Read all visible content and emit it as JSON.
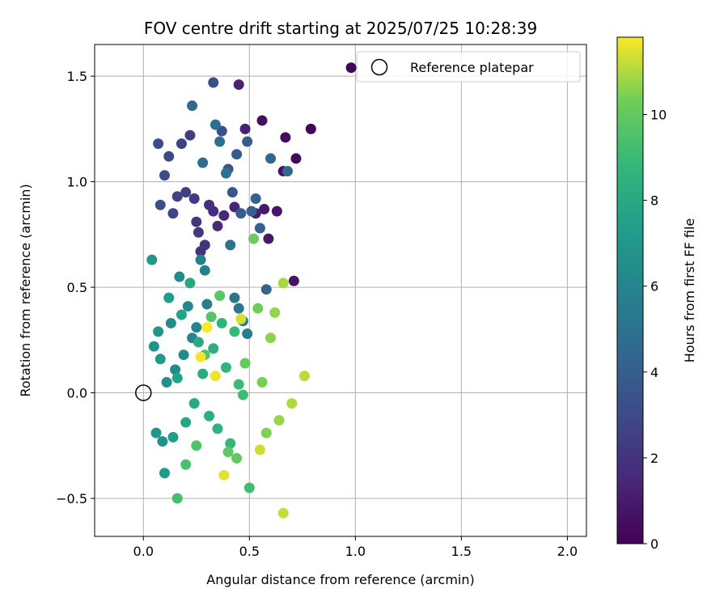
{
  "chart_data": {
    "type": "scatter",
    "title": "FOV centre drift starting at 2025/07/25 10:28:39",
    "xlabel": "Angular distance from reference (arcmin)",
    "ylabel": "Rotation from reference (arcmin)",
    "xlim": [
      -0.23,
      2.09
    ],
    "ylim": [
      -0.68,
      1.65
    ],
    "xticks": [
      0.0,
      0.5,
      1.0,
      1.5,
      2.0
    ],
    "xtick_labels": [
      "0.0",
      "0.5",
      "1.0",
      "1.5",
      "2.0"
    ],
    "yticks": [
      -0.5,
      0.0,
      0.5,
      1.0,
      1.5
    ],
    "ytick_labels": [
      "−0.5",
      "0.0",
      "0.5",
      "1.0",
      "1.5"
    ],
    "grid": true,
    "legend": {
      "position": "top-right",
      "entries": [
        "Reference platepar"
      ]
    },
    "reference_point": {
      "x": 0.0,
      "y": 0.0
    },
    "colorbar": {
      "label": "Hours from first FF file",
      "colormap": "viridis",
      "min": 0,
      "max": 11.8,
      "ticks": [
        0,
        2,
        4,
        6,
        8,
        10
      ],
      "tick_labels": [
        "0",
        "2",
        "4",
        "6",
        "8",
        "10"
      ]
    },
    "points": [
      [
        0.98,
        1.54,
        0.1
      ],
      [
        0.79,
        1.25,
        0.2
      ],
      [
        0.72,
        1.11,
        0.3
      ],
      [
        0.67,
        1.21,
        0.4
      ],
      [
        0.56,
        1.29,
        0.5
      ],
      [
        0.66,
        1.05,
        0.6
      ],
      [
        0.71,
        0.53,
        0.7
      ],
      [
        0.63,
        0.86,
        0.8
      ],
      [
        0.59,
        0.73,
        0.9
      ],
      [
        0.57,
        0.87,
        1.0
      ],
      [
        0.53,
        0.85,
        1.1
      ],
      [
        0.48,
        1.25,
        1.2
      ],
      [
        0.45,
        1.46,
        1.3
      ],
      [
        0.43,
        0.88,
        1.4
      ],
      [
        0.38,
        0.84,
        1.5
      ],
      [
        0.35,
        0.79,
        1.6
      ],
      [
        0.33,
        0.86,
        1.7
      ],
      [
        0.31,
        0.89,
        1.8
      ],
      [
        0.29,
        0.7,
        1.9
      ],
      [
        0.27,
        0.67,
        2.0
      ],
      [
        0.26,
        0.76,
        2.1
      ],
      [
        0.25,
        0.81,
        2.2
      ],
      [
        0.24,
        0.92,
        2.3
      ],
      [
        0.22,
        1.22,
        2.4
      ],
      [
        0.2,
        0.95,
        2.5
      ],
      [
        0.18,
        1.18,
        2.6
      ],
      [
        0.16,
        0.93,
        2.7
      ],
      [
        0.14,
        0.85,
        2.8
      ],
      [
        0.12,
        1.12,
        2.9
      ],
      [
        0.1,
        1.03,
        3.0
      ],
      [
        0.07,
        1.18,
        3.1
      ],
      [
        0.08,
        0.89,
        3.2
      ],
      [
        0.33,
        1.47,
        3.3
      ],
      [
        0.37,
        1.24,
        3.4
      ],
      [
        0.4,
        1.06,
        3.5
      ],
      [
        0.42,
        0.95,
        3.6
      ],
      [
        0.44,
        1.13,
        3.7
      ],
      [
        0.46,
        0.85,
        3.8
      ],
      [
        0.49,
        1.19,
        3.9
      ],
      [
        0.51,
        0.86,
        4.0
      ],
      [
        0.53,
        0.92,
        4.1
      ],
      [
        0.55,
        0.78,
        4.2
      ],
      [
        0.58,
        0.49,
        4.3
      ],
      [
        0.6,
        1.11,
        4.4
      ],
      [
        0.68,
        1.05,
        4.5
      ],
      [
        0.23,
        1.36,
        4.6
      ],
      [
        0.28,
        1.09,
        4.7
      ],
      [
        0.34,
        1.27,
        4.8
      ],
      [
        0.36,
        1.19,
        4.9
      ],
      [
        0.39,
        1.04,
        5.0
      ],
      [
        0.41,
        0.7,
        5.1
      ],
      [
        0.43,
        0.45,
        5.2
      ],
      [
        0.45,
        0.4,
        5.3
      ],
      [
        0.47,
        0.34,
        5.4
      ],
      [
        0.49,
        0.28,
        5.5
      ],
      [
        0.3,
        0.42,
        5.6
      ],
      [
        0.29,
        0.58,
        5.7
      ],
      [
        0.27,
        0.63,
        5.8
      ],
      [
        0.25,
        0.31,
        5.9
      ],
      [
        0.23,
        0.26,
        6.0
      ],
      [
        0.21,
        0.41,
        6.1
      ],
      [
        0.19,
        0.18,
        6.2
      ],
      [
        0.17,
        0.55,
        6.3
      ],
      [
        0.15,
        0.11,
        6.4
      ],
      [
        0.13,
        0.33,
        6.5
      ],
      [
        0.11,
        0.05,
        6.6
      ],
      [
        0.09,
        -0.23,
        6.7
      ],
      [
        0.07,
        0.29,
        6.8
      ],
      [
        0.05,
        0.22,
        6.9
      ],
      [
        0.04,
        0.63,
        7.0
      ],
      [
        0.06,
        -0.19,
        7.1
      ],
      [
        0.08,
        0.16,
        7.2
      ],
      [
        0.1,
        -0.38,
        7.3
      ],
      [
        0.12,
        0.45,
        7.4
      ],
      [
        0.14,
        -0.21,
        7.5
      ],
      [
        0.16,
        0.07,
        7.6
      ],
      [
        0.18,
        0.37,
        7.7
      ],
      [
        0.2,
        -0.14,
        7.8
      ],
      [
        0.22,
        0.52,
        7.9
      ],
      [
        0.24,
        -0.05,
        8.0
      ],
      [
        0.26,
        0.24,
        8.1
      ],
      [
        0.28,
        0.09,
        8.2
      ],
      [
        0.31,
        -0.11,
        8.3
      ],
      [
        0.33,
        0.21,
        8.4
      ],
      [
        0.35,
        -0.17,
        8.5
      ],
      [
        0.37,
        0.33,
        8.6
      ],
      [
        0.39,
        0.12,
        8.7
      ],
      [
        0.41,
        -0.24,
        8.8
      ],
      [
        0.43,
        0.29,
        8.9
      ],
      [
        0.45,
        0.04,
        9.0
      ],
      [
        0.47,
        -0.01,
        9.1
      ],
      [
        0.5,
        -0.45,
        9.2
      ],
      [
        0.16,
        -0.5,
        9.3
      ],
      [
        0.2,
        -0.34,
        9.4
      ],
      [
        0.25,
        -0.25,
        9.5
      ],
      [
        0.29,
        0.18,
        9.6
      ],
      [
        0.32,
        0.36,
        9.7
      ],
      [
        0.36,
        0.46,
        9.8
      ],
      [
        0.4,
        -0.28,
        9.9
      ],
      [
        0.44,
        -0.31,
        10.0
      ],
      [
        0.48,
        0.14,
        10.1
      ],
      [
        0.52,
        0.73,
        10.2
      ],
      [
        0.54,
        0.4,
        10.3
      ],
      [
        0.56,
        0.05,
        10.4
      ],
      [
        0.58,
        -0.19,
        10.5
      ],
      [
        0.6,
        0.26,
        10.6
      ],
      [
        0.62,
        0.38,
        10.7
      ],
      [
        0.64,
        -0.13,
        10.8
      ],
      [
        0.66,
        0.52,
        10.9
      ],
      [
        0.7,
        -0.05,
        11.0
      ],
      [
        0.76,
        0.08,
        11.1
      ],
      [
        0.66,
        -0.57,
        11.2
      ],
      [
        0.55,
        -0.27,
        11.3
      ],
      [
        0.46,
        0.35,
        11.4
      ],
      [
        0.38,
        -0.39,
        11.5
      ],
      [
        0.34,
        0.08,
        11.6
      ],
      [
        0.27,
        0.17,
        11.7
      ],
      [
        0.3,
        0.31,
        11.8
      ]
    ]
  }
}
